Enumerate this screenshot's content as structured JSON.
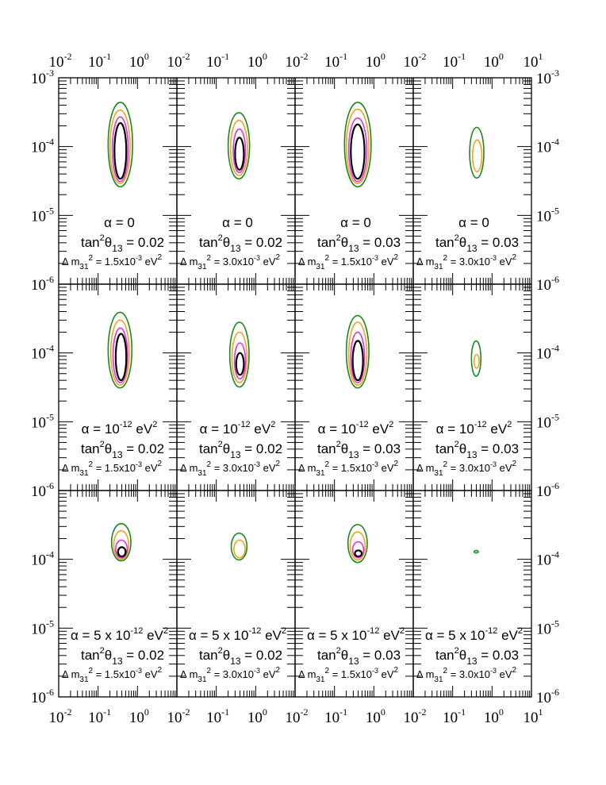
{
  "chart_data": {
    "type": "contour",
    "layout": {
      "rows": 3,
      "cols": 4
    },
    "x_axis": {
      "scale": "log",
      "range": [
        0.01,
        10
      ],
      "top_ticks": [
        "-2",
        "-1",
        "0",
        "-2",
        "-1",
        "0",
        "-2",
        "-1",
        "0",
        "-2",
        "-1",
        "0",
        "1"
      ],
      "bottom_ticks": [
        "-2",
        "-1",
        "0",
        "-2",
        "-1",
        "0",
        "-2",
        "-1",
        "0",
        "-2",
        "-1",
        "0",
        "1"
      ],
      "tick_base": "10"
    },
    "y_axis": {
      "scale": "log",
      "range": [
        1e-06,
        0.001
      ],
      "ticks": [
        "-3",
        "-4",
        "-5",
        "-6"
      ],
      "tick_base": "10"
    },
    "contour_colors": [
      "#1a8a1a",
      "#f5a020",
      "#e030e0",
      "#000000"
    ],
    "panels": [
      {
        "row": 0,
        "col": 0,
        "alpha_label": "α = 0",
        "alpha_exp": "",
        "alpha_unit": "",
        "tan_label": "tan",
        "tan_value": "= 0.02",
        "dm_value": "= 1.5x10",
        "dm_exp": "-3",
        "contours": [
          {
            "level": 0,
            "x": [
              0.18,
              0.75
            ],
            "y": [
              2.6e-05,
              0.00044
            ]
          },
          {
            "level": 1,
            "x": [
              0.2,
              0.65
            ],
            "y": [
              2.9e-05,
              0.00034
            ]
          },
          {
            "level": 2,
            "x": [
              0.23,
              0.58
            ],
            "y": [
              3.1e-05,
              0.00027
            ]
          },
          {
            "level": 3,
            "x": [
              0.26,
              0.52
            ],
            "y": [
              3.4e-05,
              0.00022
            ]
          }
        ]
      },
      {
        "row": 0,
        "col": 1,
        "alpha_label": "α = 0",
        "alpha_exp": "",
        "alpha_unit": "",
        "tan_label": "tan",
        "tan_value": "= 0.02",
        "dm_value": "= 3.0x10",
        "dm_exp": "-3",
        "contours": [
          {
            "level": 0,
            "x": [
              0.2,
              0.7
            ],
            "y": [
              3.4e-05,
              0.00031
            ]
          },
          {
            "level": 1,
            "x": [
              0.23,
              0.62
            ],
            "y": [
              3.8e-05,
              0.00024
            ]
          },
          {
            "level": 2,
            "x": [
              0.27,
              0.55
            ],
            "y": [
              4.2e-05,
              0.00018
            ]
          },
          {
            "level": 3,
            "x": [
              0.3,
              0.5
            ],
            "y": [
              4.6e-05,
              0.000135
            ]
          }
        ]
      },
      {
        "row": 0,
        "col": 2,
        "alpha_label": "α = 0",
        "alpha_exp": "",
        "alpha_unit": "",
        "tan_label": "tan",
        "tan_value": "= 0.03",
        "dm_value": "= 1.5x10",
        "dm_exp": "-3",
        "contours": [
          {
            "level": 0,
            "x": [
              0.18,
              0.85
            ],
            "y": [
              2.6e-05,
              0.00044
            ]
          },
          {
            "level": 1,
            "x": [
              0.2,
              0.75
            ],
            "y": [
              2.9e-05,
              0.00035
            ]
          },
          {
            "level": 2,
            "x": [
              0.23,
              0.66
            ],
            "y": [
              3.1e-05,
              0.00026
            ]
          },
          {
            "level": 3,
            "x": [
              0.26,
              0.58
            ],
            "y": [
              3.4e-05,
              0.00021
            ]
          }
        ]
      },
      {
        "row": 0,
        "col": 3,
        "alpha_label": "α = 0",
        "alpha_exp": "",
        "alpha_unit": "",
        "tan_label": "tan",
        "tan_value": "= 0.03",
        "dm_value": "= 3.0x10",
        "dm_exp": "-3",
        "contours": [
          {
            "level": 0,
            "x": [
              0.27,
              0.62
            ],
            "y": [
              3.5e-05,
              0.00019
            ]
          },
          {
            "level": 1,
            "x": [
              0.32,
              0.55
            ],
            "y": [
              4.3e-05,
              0.000125
            ]
          }
        ]
      },
      {
        "row": 1,
        "col": 0,
        "alpha_label": "α = 10",
        "alpha_exp": "-12",
        "alpha_unit": "eV",
        "tan_label": "tan",
        "tan_value": "= 0.02",
        "dm_value": "= 1.5x10",
        "dm_exp": "-3",
        "contours": [
          {
            "level": 0,
            "x": [
              0.18,
              0.72
            ],
            "y": [
              3.1e-05,
              0.00039
            ]
          },
          {
            "level": 1,
            "x": [
              0.21,
              0.62
            ],
            "y": [
              3.4e-05,
              0.0003
            ]
          },
          {
            "level": 2,
            "x": [
              0.24,
              0.56
            ],
            "y": [
              3.7e-05,
              0.00023
            ]
          },
          {
            "level": 3,
            "x": [
              0.28,
              0.52
            ],
            "y": [
              4e-05,
              0.00019
            ]
          }
        ]
      },
      {
        "row": 1,
        "col": 1,
        "alpha_label": "α = 10",
        "alpha_exp": "-12",
        "alpha_unit": "eV",
        "tan_label": "tan",
        "tan_value": "= 0.02",
        "dm_value": "= 3.0x10",
        "dm_exp": "-3",
        "contours": [
          {
            "level": 0,
            "x": [
              0.22,
              0.68
            ],
            "y": [
              3.2e-05,
              0.00028
            ]
          },
          {
            "level": 1,
            "x": [
              0.25,
              0.6
            ],
            "y": [
              3.7e-05,
              0.0002
            ]
          },
          {
            "level": 2,
            "x": [
              0.29,
              0.55
            ],
            "y": [
              4.2e-05,
              0.00014
            ]
          },
          {
            "level": 3,
            "x": [
              0.32,
              0.5
            ],
            "y": [
              4.8e-05,
              0.0001
            ]
          }
        ]
      },
      {
        "row": 1,
        "col": 2,
        "alpha_label": "α = 10",
        "alpha_exp": "-12",
        "alpha_unit": "eV",
        "tan_label": "tan",
        "tan_value": "= 0.03",
        "dm_value": "= 1.5x10",
        "dm_exp": "-3",
        "contours": [
          {
            "level": 0,
            "x": [
              0.2,
              0.75
            ],
            "y": [
              3.1e-05,
              0.00035
            ]
          },
          {
            "level": 1,
            "x": [
              0.23,
              0.66
            ],
            "y": [
              3.4e-05,
              0.00028
            ]
          },
          {
            "level": 2,
            "x": [
              0.26,
              0.58
            ],
            "y": [
              3.7e-05,
              0.0002
            ]
          },
          {
            "level": 3,
            "x": [
              0.29,
              0.53
            ],
            "y": [
              4e-05,
              0.00015
            ]
          }
        ]
      },
      {
        "row": 1,
        "col": 3,
        "alpha_label": "α = 10",
        "alpha_exp": "-12",
        "alpha_unit": "eV",
        "tan_label": "tan",
        "tan_value": "= 0.03",
        "dm_value": "= 3.0x10",
        "dm_exp": "-3",
        "contours": [
          {
            "level": 0,
            "x": [
              0.3,
              0.52
            ],
            "y": [
              4.6e-05,
              0.00015
            ]
          },
          {
            "level": 1,
            "x": [
              0.35,
              0.47
            ],
            "y": [
              6e-05,
              9.5e-05
            ]
          }
        ]
      },
      {
        "row": 2,
        "col": 0,
        "alpha_label": "α = 5 x 10",
        "alpha_exp": "-12",
        "alpha_unit": "eV",
        "tan_label": "tan",
        "tan_value": "= 0.02",
        "dm_value": "= 1.5x10",
        "dm_exp": "-3",
        "contours": [
          {
            "level": 0,
            "x": [
              0.22,
              0.68
            ],
            "y": [
              9.5e-05,
              0.00033
            ]
          },
          {
            "level": 1,
            "x": [
              0.25,
              0.6
            ],
            "y": [
              0.0001,
              0.00026
            ]
          },
          {
            "level": 2,
            "x": [
              0.28,
              0.55
            ],
            "y": [
              0.000105,
              0.00019
            ]
          },
          {
            "level": 3,
            "x": [
              0.32,
              0.5
            ],
            "y": [
              0.00011,
              0.00015
            ]
          }
        ]
      },
      {
        "row": 2,
        "col": 1,
        "alpha_label": "α = 5 x 10",
        "alpha_exp": "-12",
        "alpha_unit": "eV",
        "tan_label": "tan",
        "tan_value": "= 0.02",
        "dm_value": "= 3.0x10",
        "dm_exp": "-3",
        "contours": [
          {
            "level": 0,
            "x": [
              0.24,
              0.6
            ],
            "y": [
              9.8e-05,
              0.00024
            ]
          },
          {
            "level": 1,
            "x": [
              0.28,
              0.54
            ],
            "y": [
              0.000105,
              0.00019
            ]
          }
        ]
      },
      {
        "row": 2,
        "col": 2,
        "alpha_label": "α = 5 x 10",
        "alpha_exp": "-12",
        "alpha_unit": "eV",
        "tan_label": "tan",
        "tan_value": "= 0.03",
        "dm_value": "= 1.5x10",
        "dm_exp": "-3",
        "contours": [
          {
            "level": 0,
            "x": [
              0.22,
              0.68
            ],
            "y": [
              9e-05,
              0.00032
            ]
          },
          {
            "level": 1,
            "x": [
              0.25,
              0.6
            ],
            "y": [
              9.8e-05,
              0.00025
            ]
          },
          {
            "level": 2,
            "x": [
              0.29,
              0.55
            ],
            "y": [
              0.000105,
              0.00018
            ]
          },
          {
            "level": 3,
            "x": [
              0.33,
              0.49
            ],
            "y": [
              0.00011,
              0.000135
            ]
          }
        ]
      },
      {
        "row": 2,
        "col": 3,
        "alpha_label": "α = 5 x 10",
        "alpha_exp": "-12",
        "alpha_unit": "eV",
        "tan_label": "tan",
        "tan_value": "= 0.03",
        "dm_value": "= 3.0x10",
        "dm_exp": "-3",
        "contours": [
          {
            "level": 0,
            "x": [
              0.35,
              0.45
            ],
            "y": [
              0.000124,
              0.000134
            ]
          }
        ]
      }
    ]
  }
}
